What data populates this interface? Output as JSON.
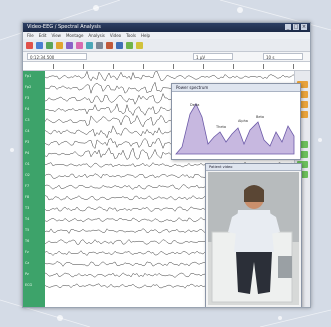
{
  "window": {
    "title": "Video-EEG / Spectral Analysis",
    "controls": [
      "_",
      "□",
      "×"
    ]
  },
  "menu": {
    "items": [
      "File",
      "Edit",
      "View",
      "Montage",
      "Analysis",
      "Video",
      "Tools",
      "Help"
    ]
  },
  "toolbar": {
    "time_field": "0:12:34.500",
    "gain_field": "1 µV",
    "range_field": "10 s"
  },
  "channels": [
    "Fp1",
    "Fp2",
    "F3",
    "F4",
    "C3",
    "C4",
    "P3",
    "P4",
    "O1",
    "O2",
    "F7",
    "F8",
    "T3",
    "T4",
    "T5",
    "T6",
    "Fz",
    "Cz",
    "Pz",
    "ECG"
  ],
  "spectrum": {
    "title": "Power spectrum",
    "labels": [
      "Delta",
      "Theta",
      "Alpha",
      "Beta"
    ]
  },
  "video": {
    "title": "Patient video"
  },
  "colors": {
    "channel_panel": "#3da36a",
    "spectrum_fill": "#c7b8e0",
    "spectrum_line": "#6c5aa8",
    "titlebar": "#1d2b47"
  }
}
